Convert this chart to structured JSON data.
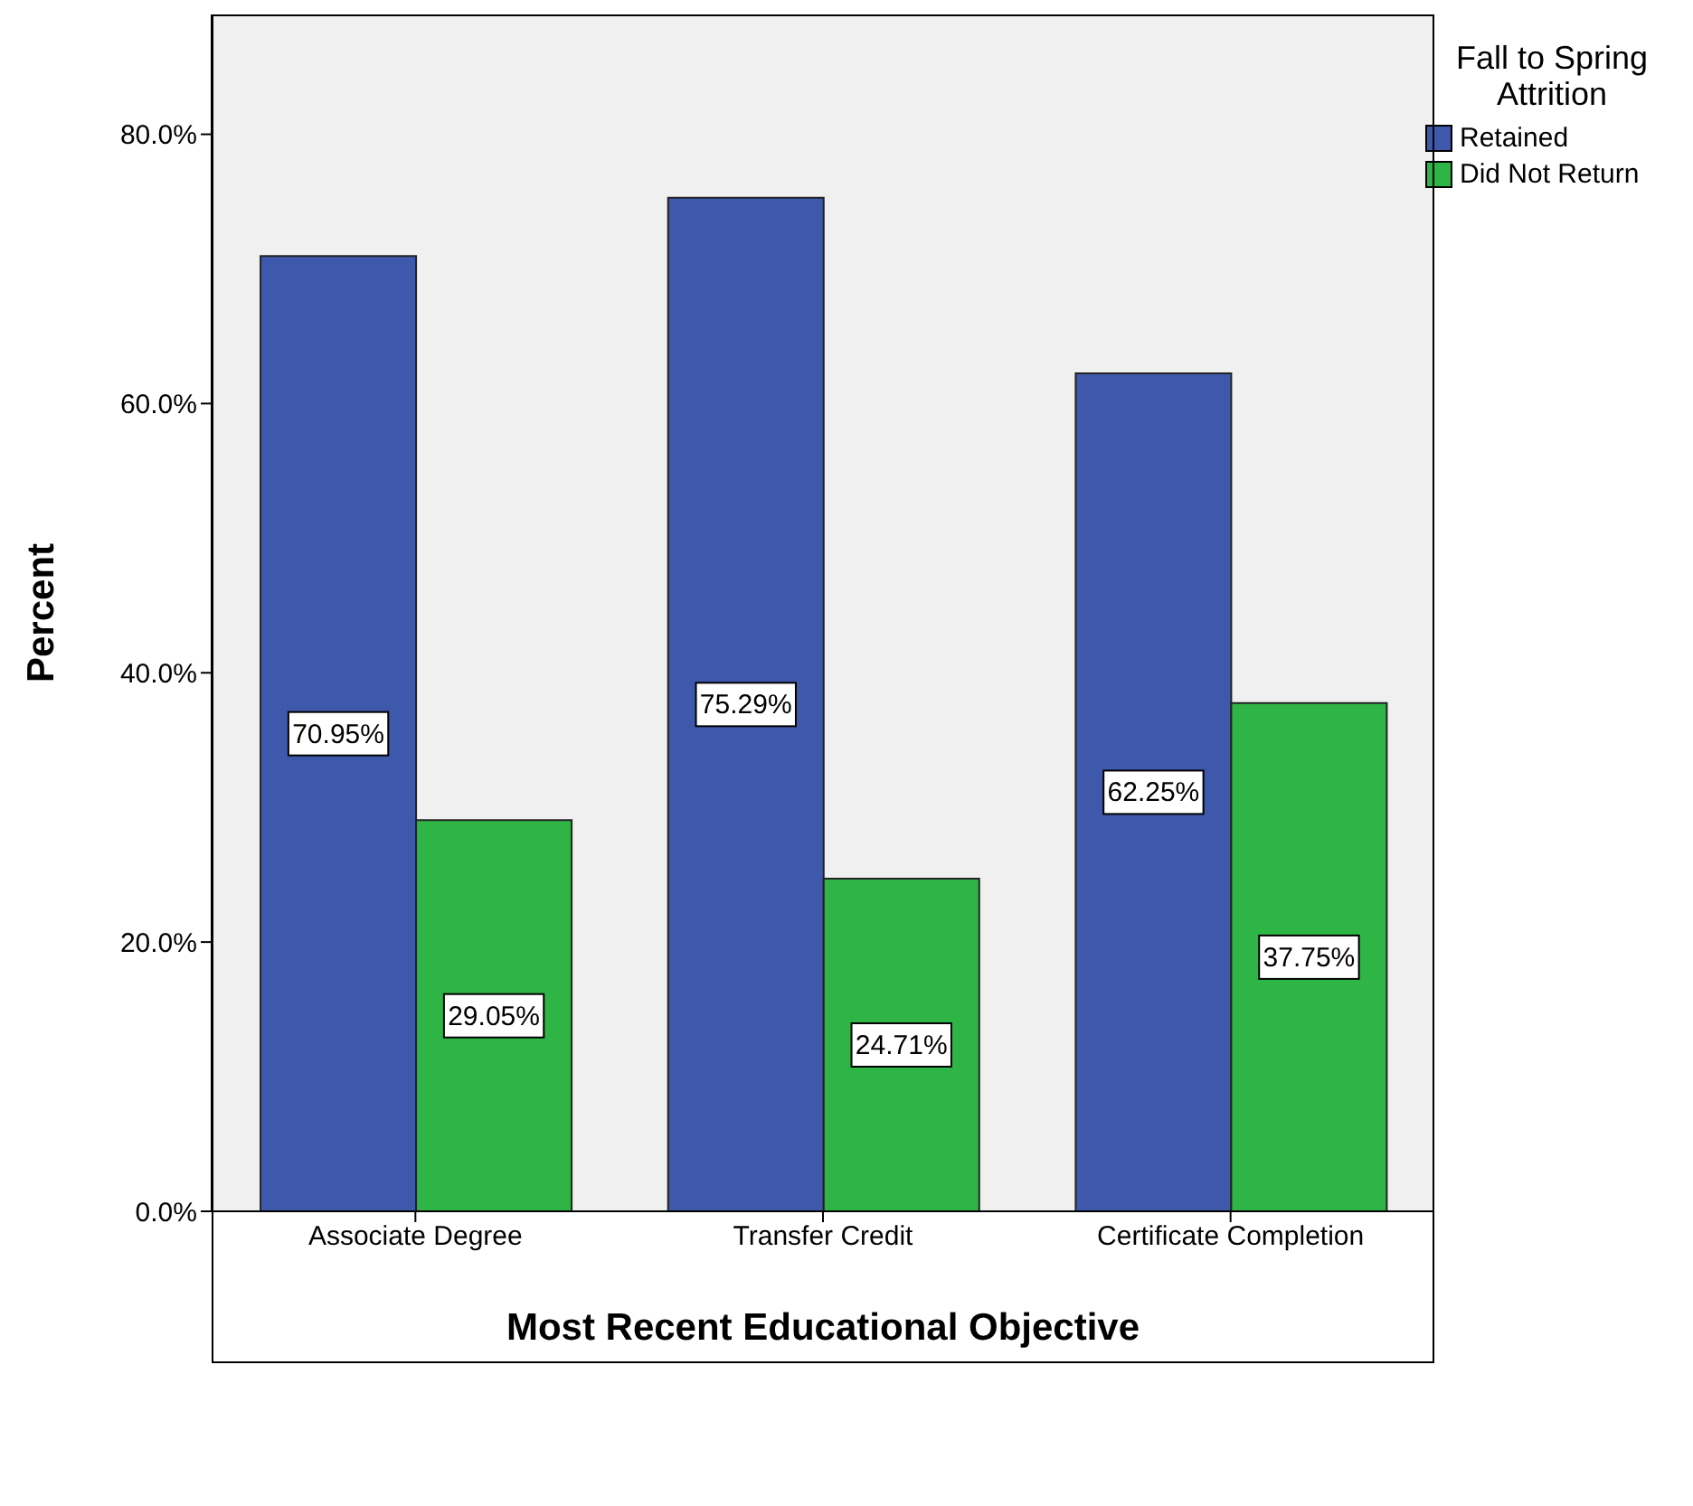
{
  "chart_data": {
    "type": "bar",
    "xlabel": "Most Recent Educational Objective",
    "ylabel": "Percent",
    "legend_title": "Fall to Spring Attrition",
    "categories": [
      "Associate Degree",
      "Transfer Credit",
      "Certificate Completion"
    ],
    "series": [
      {
        "name": "Retained",
        "color": "#3e58ac",
        "values": [
          70.95,
          75.29,
          62.25
        ],
        "value_labels": [
          "70.95%",
          "75.29%",
          "62.25%"
        ]
      },
      {
        "name": "Did Not Return",
        "color": "#2fb545",
        "values": [
          29.05,
          24.71,
          37.75
        ],
        "value_labels": [
          "29.05%",
          "24.71%",
          "37.75%"
        ]
      }
    ],
    "ylim": [
      0,
      88.9
    ],
    "yticks": [
      {
        "value": 0,
        "label": "0.0%"
      },
      {
        "value": 20,
        "label": "20.0%"
      },
      {
        "value": 40,
        "label": "40.0%"
      },
      {
        "value": 60,
        "label": "60.0%"
      },
      {
        "value": 80,
        "label": "80.0%"
      }
    ],
    "grid": false,
    "legend": "top right"
  }
}
